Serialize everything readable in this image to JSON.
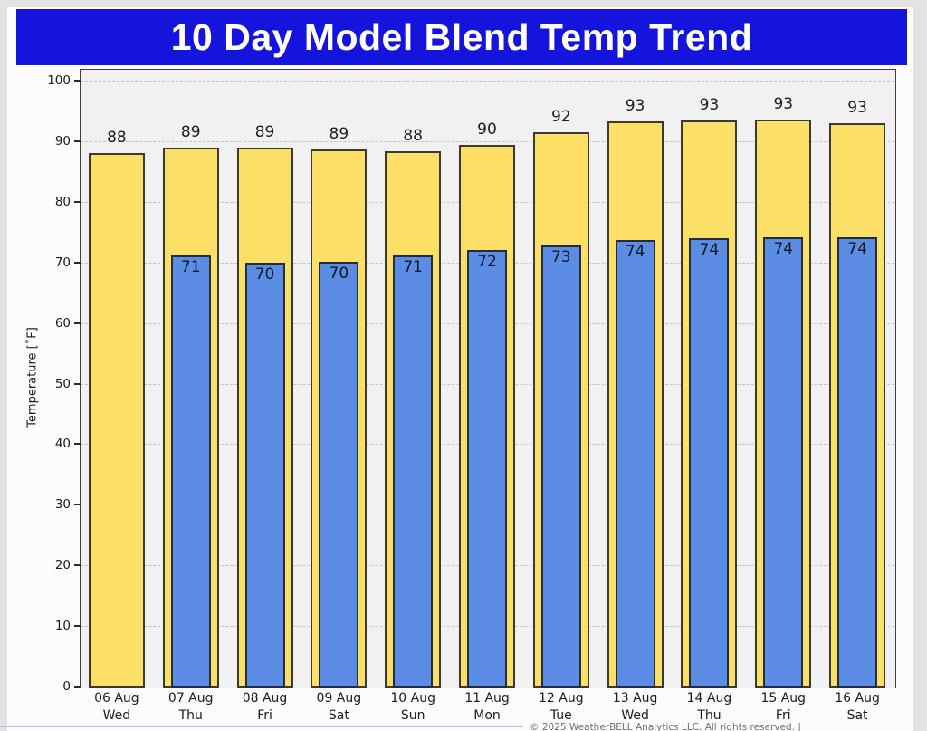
{
  "banner": {
    "title": "10 Day Model Blend Temp Trend",
    "bg_color": "#1414dc",
    "text_color": "#ffffff"
  },
  "chart_data": {
    "type": "bar",
    "title": "10 Day Model Blend Temp Trend",
    "xlabel": "",
    "ylabel": "Temperature [˚F]",
    "ylim": [
      0,
      100
    ],
    "ytick_step": 10,
    "ytick_labels": [
      "0",
      "10",
      "20",
      "30",
      "40",
      "50",
      "60",
      "70",
      "80",
      "90",
      "100"
    ],
    "grid": "horizontal-dashed",
    "legend_position": "none",
    "plot_background": "#f1f1f1",
    "categories": [
      {
        "date": "06 Aug",
        "weekday": "Wed"
      },
      {
        "date": "07 Aug",
        "weekday": "Thu"
      },
      {
        "date": "08 Aug",
        "weekday": "Fri"
      },
      {
        "date": "09 Aug",
        "weekday": "Sat"
      },
      {
        "date": "10 Aug",
        "weekday": "Sun"
      },
      {
        "date": "11 Aug",
        "weekday": "Mon"
      },
      {
        "date": "12 Aug",
        "weekday": "Tue"
      },
      {
        "date": "13 Aug",
        "weekday": "Wed"
      },
      {
        "date": "14 Aug",
        "weekday": "Thu"
      },
      {
        "date": "15 Aug",
        "weekday": "Fri"
      },
      {
        "date": "16 Aug",
        "weekday": "Sat"
      }
    ],
    "series": [
      {
        "name": "High temperature",
        "color": "#fbdf66",
        "values": [
          88,
          89,
          89,
          89,
          88,
          90,
          92,
          93,
          93,
          93,
          93
        ],
        "bar_tops": [
          88.0,
          89.0,
          88.9,
          88.6,
          88.3,
          89.4,
          91.5,
          93.2,
          93.4,
          93.5,
          92.9
        ]
      },
      {
        "name": "Low temperature",
        "color": "#5c8de4",
        "values": [
          null,
          71,
          70,
          70,
          71,
          72,
          73,
          74,
          74,
          74,
          74
        ],
        "bar_tops": [
          null,
          71.2,
          70.0,
          70.1,
          71.1,
          72.0,
          72.8,
          73.7,
          74.0,
          74.2,
          74.1
        ]
      }
    ]
  },
  "footer": {
    "attribution": "© 2025 WeatherBELL Analytics LLC. All rights reserved. |"
  }
}
